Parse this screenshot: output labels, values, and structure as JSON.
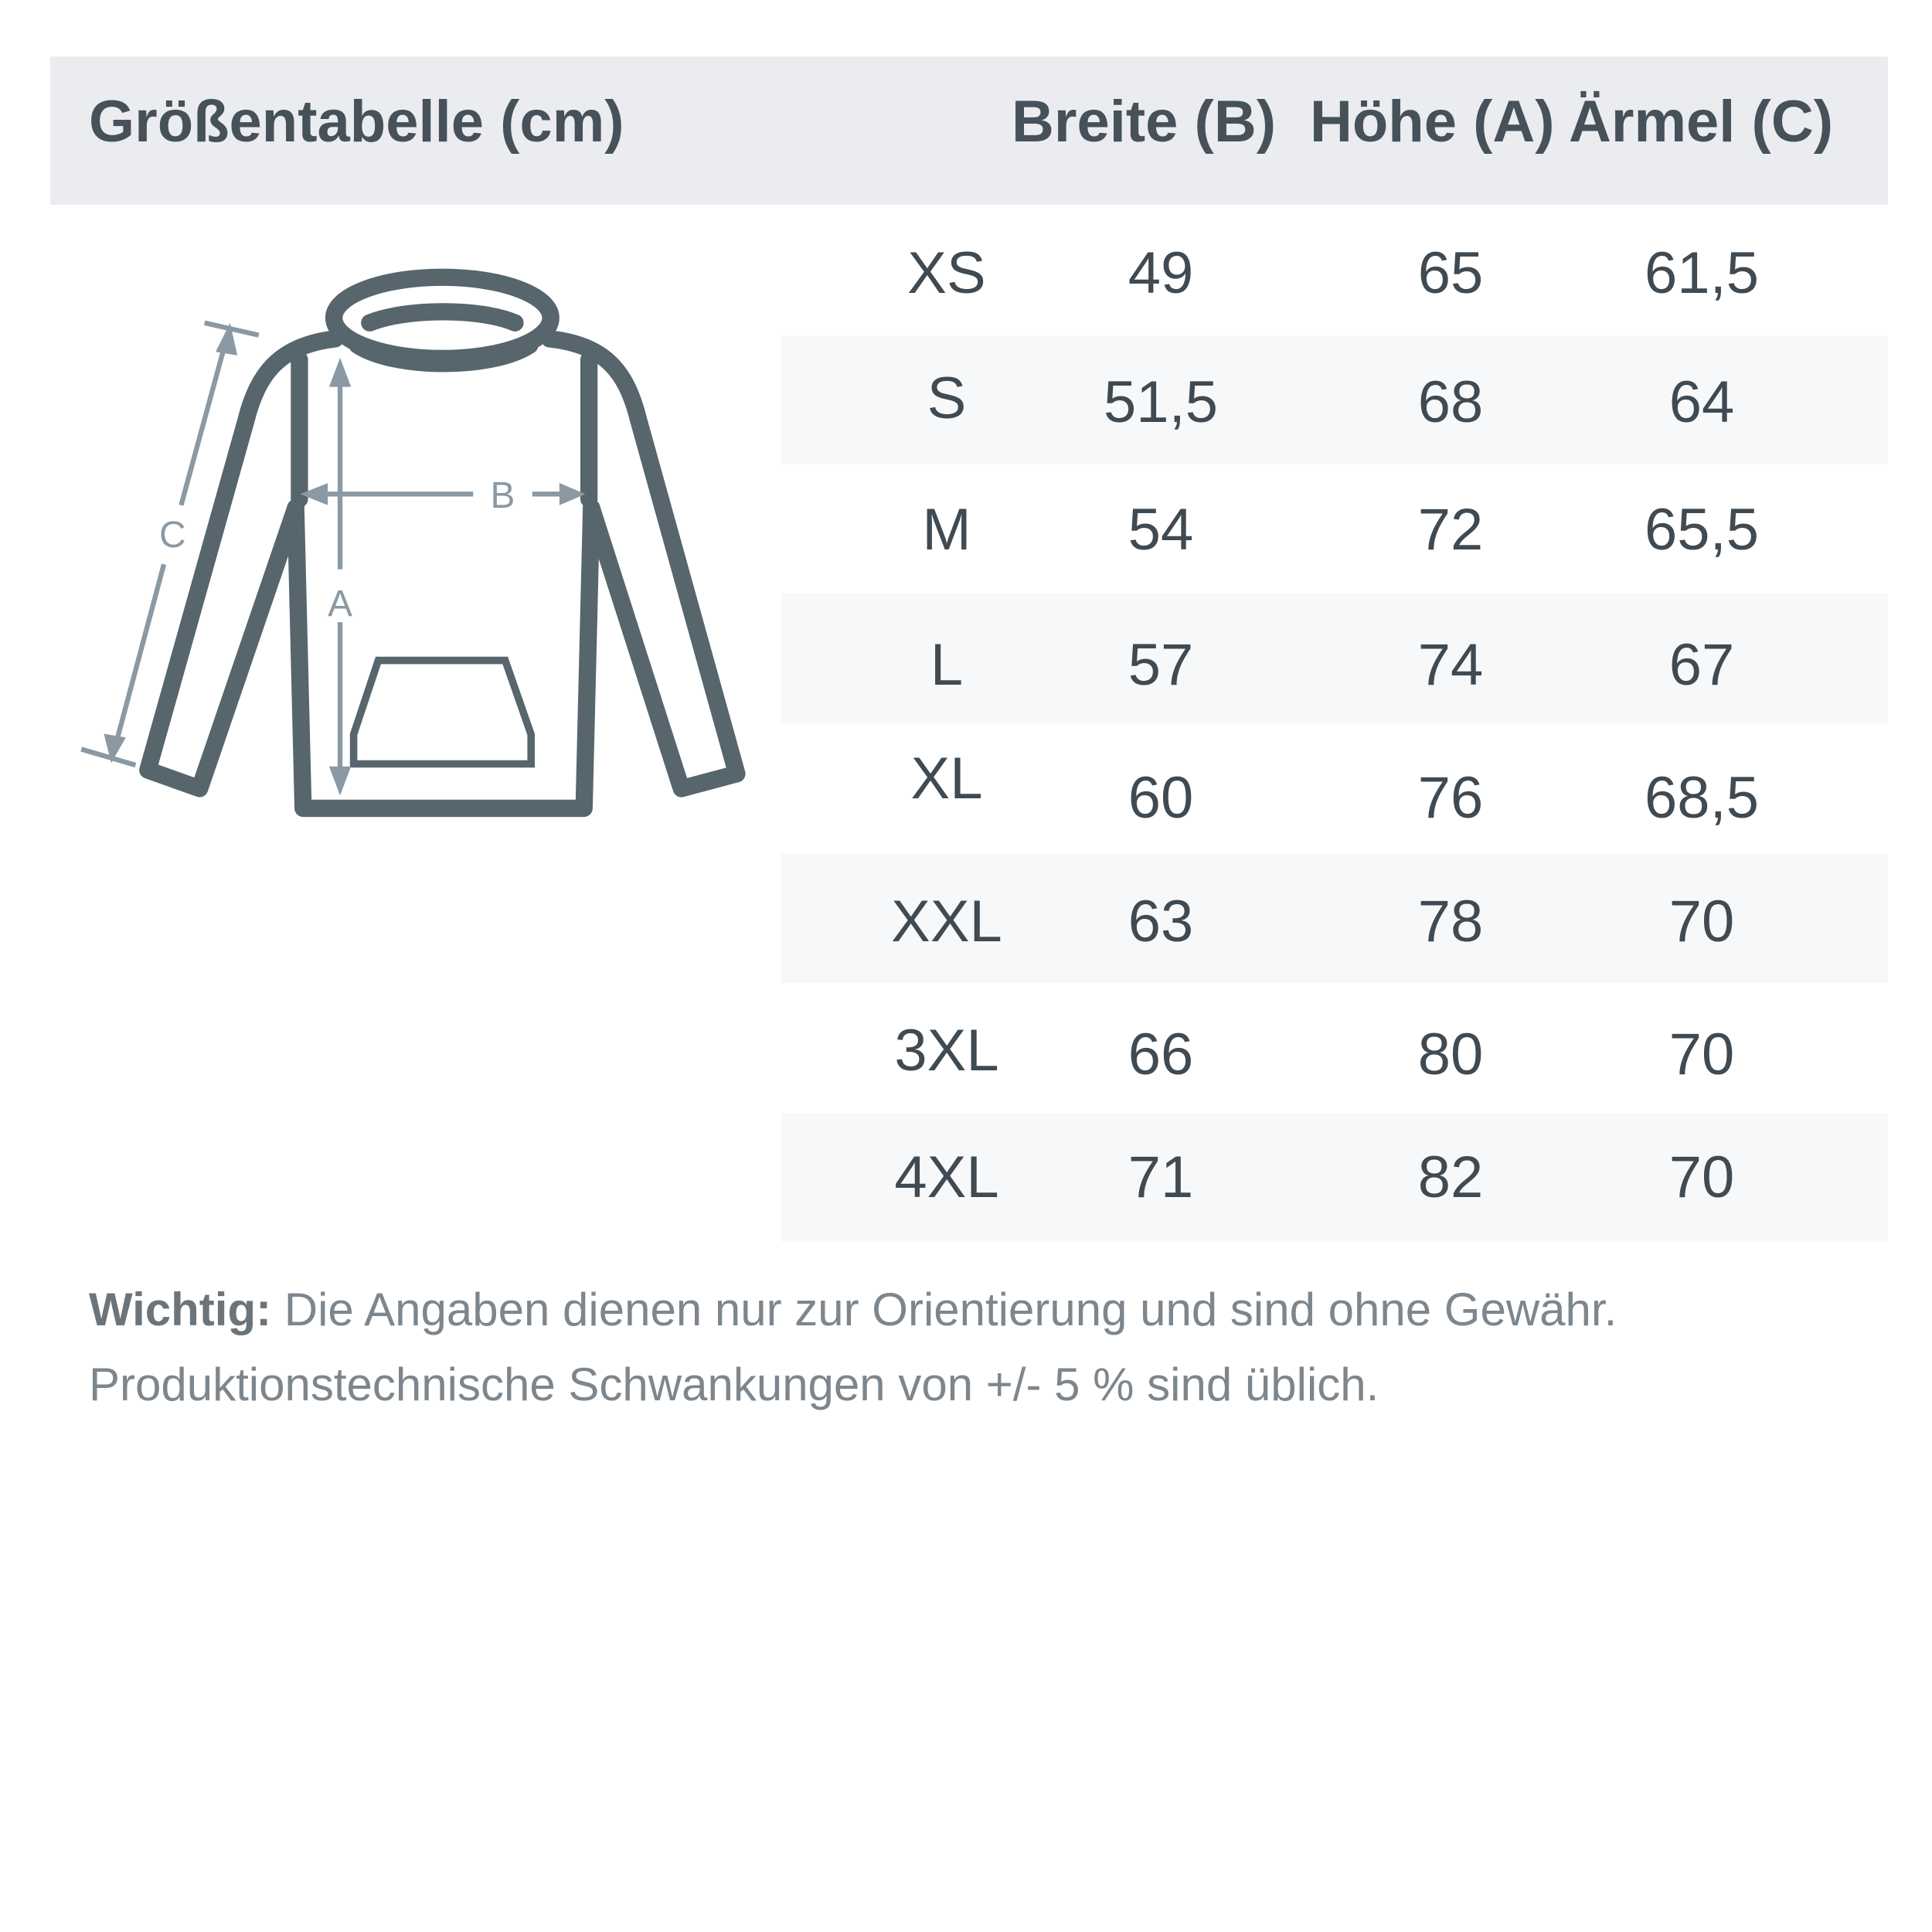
{
  "header": {
    "title": "Größentabelle (cm)",
    "columns": [
      "Breite (B)",
      "Höhe (A)",
      "Ärmel (C)"
    ]
  },
  "diagram": {
    "labels": {
      "a": "A",
      "b": "B",
      "c": "C"
    },
    "colors": {
      "outline": "#57656d",
      "measure": "#8a99a3"
    }
  },
  "rows": [
    {
      "size": "XS",
      "breite": "49",
      "hoehe": "65",
      "aermel": "61,5"
    },
    {
      "size": "S",
      "breite": "51,5",
      "hoehe": "68",
      "aermel": "64"
    },
    {
      "size": "M",
      "breite": "54",
      "hoehe": "72",
      "aermel": "65,5"
    },
    {
      "size": "L",
      "breite": "57",
      "hoehe": "74",
      "aermel": "67"
    },
    {
      "size": "XL",
      "breite": "60",
      "hoehe": "76",
      "aermel": "68,5"
    },
    {
      "size": "XXL",
      "breite": "63",
      "hoehe": "78",
      "aermel": "70"
    },
    {
      "size": "3XL",
      "breite": "66",
      "hoehe": "80",
      "aermel": "70"
    },
    {
      "size": "4XL",
      "breite": "71",
      "hoehe": "82",
      "aermel": "70"
    }
  ],
  "note": {
    "bold": "Wichtig:",
    "line1": " Die Angaben dienen nur zur Orientierung und sind ohne Gewähr.",
    "line2": "Produktionstechnische Schwankungen von +/- 5 % sind üblich."
  }
}
